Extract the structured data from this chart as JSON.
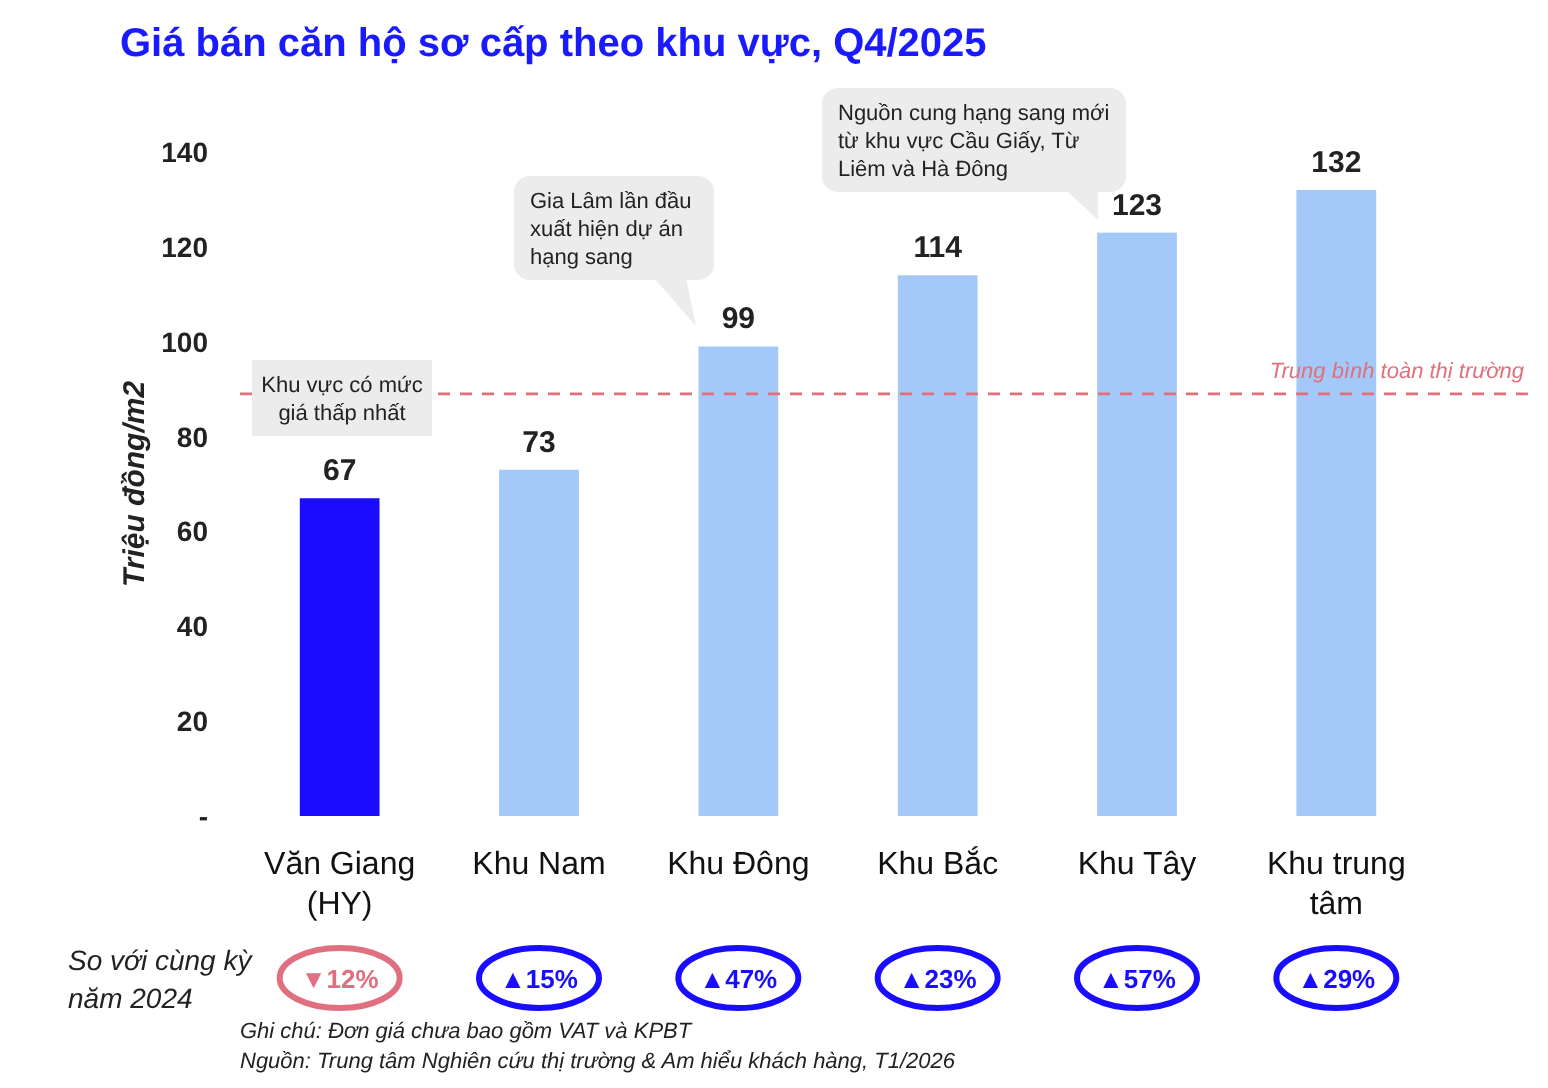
{
  "chart_data": {
    "type": "bar",
    "title": "Giá bán căn hộ sơ cấp theo khu vực, Q4/2025",
    "ylabel": "Triệu đồng/m2",
    "categories": [
      "Văn Giang (HY)",
      "Khu Nam",
      "Khu Đông",
      "Khu Bắc",
      "Khu Tây",
      "Khu trung tâm"
    ],
    "values": [
      67,
      73,
      99,
      114,
      123,
      132
    ],
    "colors": [
      "#1a0dff",
      "#a4c8f8",
      "#a4c8f8",
      "#a4c8f8",
      "#a4c8f8",
      "#a4c8f8"
    ],
    "data_labels": true,
    "ylim": [
      0,
      140
    ],
    "yticks": [
      {
        "value": 0,
        "label": "-"
      },
      20,
      40,
      60,
      80,
      100,
      120,
      140
    ],
    "ref_lines": [
      {
        "axis": "y",
        "value": 89,
        "label": "Trung bình toàn thị trường",
        "color": "#e0707c",
        "line_style": "dashed"
      }
    ],
    "annotations": [
      "Khu vực có mức giá thấp nhất",
      "Gia Lâm lần đầu xuất hiện dự án hạng sang",
      "Nguồn cung hạng sang mới từ khu vực Cầu Giấy, Từ Liêm và Hà Đông",
      "So với cùng kỳ năm 2024",
      "▼12%",
      "▲15%",
      "▲47%",
      "▲23%",
      "▲57%",
      "▲29%",
      "Ghi chú: Đơn giá chưa bao gồm VAT và KPBT",
      "Nguồn: Trung tâm Nghiên cứu thị trường & Am hiểu khách hàng, T1/2026"
    ]
  }
}
